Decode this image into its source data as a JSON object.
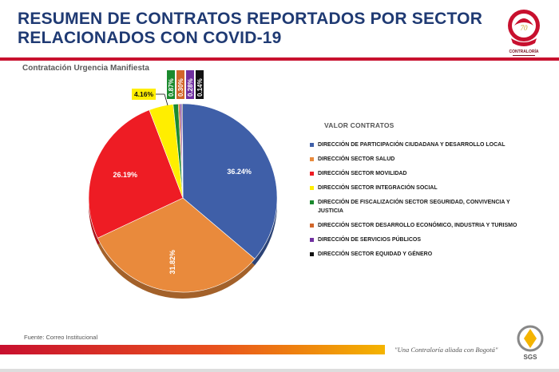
{
  "header": {
    "title_line1": "RESUMEN DE CONTRATOS REPORTADOS POR SECTOR",
    "title_line2": "RELACIONADOS CON COVID-19",
    "logo_text": "CONTRALORÍA"
  },
  "chart_data": {
    "type": "pie",
    "title": "Contratación Urgencia Manifiesta",
    "legend_title": "VALOR CONTRATOS",
    "legend_position": "right",
    "series": [
      {
        "name": "DIRECCIÓN DE PARTICIPACIÓN CIUDADANA Y DESARROLLO LOCAL",
        "value": 36.24,
        "label": "36.24%",
        "color": "#3f5fa8"
      },
      {
        "name": "DIRECCIÓN SECTOR SALUD",
        "value": 31.82,
        "label": "31.82%",
        "color": "#e98a3c"
      },
      {
        "name": "DIRECCIÓN SECTOR MOVILIDAD",
        "value": 26.19,
        "label": "26.19%",
        "color": "#ee1c24"
      },
      {
        "name": "DIRECCIÓN SECTOR INTEGRACIÓN SOCIAL",
        "value": 4.16,
        "label": "4.16%",
        "color": "#ffee00"
      },
      {
        "name": "DIRECCIÓN DE FISCALIZACIÓN SECTOR SEGURIDAD, CONVIVENCIA Y JUSTICIA",
        "value": 0.87,
        "label": "0.87%",
        "color": "#1b8a2e"
      },
      {
        "name": "DIRECCIÓN SECTOR DESARROLLO ECONÓMICO, INDUSTRIA Y TURISMO",
        "value": 0.3,
        "label": "0.30%",
        "color": "#d2662a"
      },
      {
        "name": "DIRECCIÓN DE SERVICIOS PÚBLICOS",
        "value": 0.28,
        "label": "0.28%",
        "color": "#7030a0"
      },
      {
        "name": "DIRECCIÓN SECTOR EQUIDAD Y GÉNERO",
        "value": 0.14,
        "label": "0.14%",
        "color": "#111111"
      }
    ]
  },
  "footer": {
    "source": "Fuente:  Correo Institucional",
    "tagline": "\"Una Contraloría aliada con Bogotá\"",
    "cert": "SGS"
  }
}
